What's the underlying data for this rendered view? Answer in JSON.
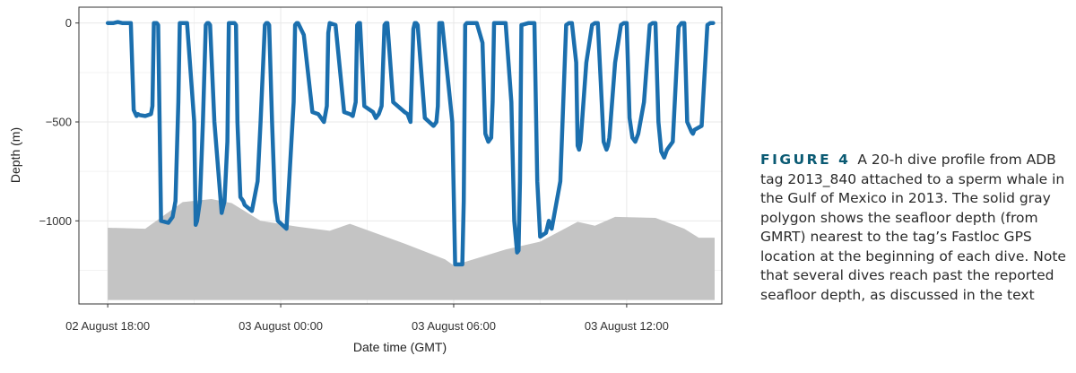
{
  "chart_data": {
    "type": "line",
    "xlabel": "Date time (GMT)",
    "ylabel": "Depth (m)",
    "x_start": "02 August 17:00",
    "x_ticks": [
      {
        "hours": 1,
        "label": "02 August 18:00"
      },
      {
        "hours": 7,
        "label": "03 August 00:00"
      },
      {
        "hours": 13,
        "label": "03 August 06:00"
      },
      {
        "hours": 19,
        "label": "03 August 12:00"
      }
    ],
    "y_ticks": [
      0,
      -500,
      -1000
    ],
    "xlim_hours": [
      0,
      22.3
    ],
    "ylim": [
      -1420,
      80
    ],
    "grid": true,
    "series": [
      {
        "color": "#1b6fae",
        "x_hours": [
          1.0,
          1.2,
          1.35,
          1.5,
          1.8,
          1.9,
          2.0,
          2.05,
          2.1,
          2.3,
          2.5,
          2.55,
          2.6,
          2.7,
          2.75,
          2.8,
          2.85,
          3.1,
          3.25,
          3.35,
          3.45,
          3.5,
          3.55,
          3.75,
          4.0,
          4.05,
          4.1,
          4.2,
          4.3,
          4.4,
          4.45,
          4.5,
          4.55,
          4.7,
          4.95,
          5.05,
          5.15,
          5.2,
          5.3,
          5.4,
          5.45,
          5.5,
          5.6,
          5.7,
          5.75,
          6.0,
          6.2,
          6.3,
          6.45,
          6.5,
          6.55,
          6.6,
          6.7,
          6.8,
          6.9,
          7.2,
          7.45,
          7.5,
          7.55,
          7.6,
          7.8,
          8.1,
          8.3,
          8.4,
          8.5,
          8.6,
          8.65,
          8.7,
          8.9,
          9.2,
          9.4,
          9.5,
          9.6,
          9.65,
          9.7,
          9.75,
          9.9,
          10.2,
          10.3,
          10.4,
          10.5,
          10.6,
          10.65,
          10.7,
          10.9,
          11.3,
          11.4,
          11.5,
          11.6,
          11.65,
          11.7,
          11.75,
          12.0,
          12.3,
          12.4,
          12.45,
          12.5,
          12.55,
          12.6,
          12.95,
          13.05,
          13.15,
          13.3,
          13.35,
          13.4,
          13.45,
          13.8,
          14.0,
          14.1,
          14.2,
          14.3,
          14.35,
          14.4,
          14.45,
          14.8,
          15.0,
          15.1,
          15.2,
          15.25,
          15.3,
          15.35,
          15.6,
          15.8,
          15.9,
          16.0,
          16.2,
          16.3,
          16.35,
          16.4,
          16.7,
          16.9,
          17.0,
          17.1,
          17.25,
          17.3,
          17.35,
          17.4,
          17.6,
          17.8,
          17.9,
          18.0,
          18.1,
          18.2,
          18.3,
          18.35,
          18.4,
          18.6,
          18.8,
          18.9,
          19.0,
          19.1,
          19.2,
          19.3,
          19.4,
          19.6,
          19.8,
          19.9,
          20.0,
          20.1,
          20.2,
          20.3,
          20.4,
          20.6,
          20.8,
          20.9,
          21.0,
          21.1,
          21.25,
          21.3,
          21.35,
          21.6,
          21.8,
          21.9,
          22.0,
          22.05
        ],
        "depth": [
          0,
          0,
          5,
          0,
          0,
          -440,
          -470,
          -460,
          -465,
          -470,
          -460,
          -420,
          0,
          0,
          -10,
          -500,
          -1000,
          -1010,
          -980,
          -900,
          -400,
          0,
          0,
          0,
          -500,
          -1020,
          -1000,
          -900,
          -500,
          -10,
          0,
          0,
          -10,
          -500,
          -960,
          -900,
          -600,
          0,
          0,
          0,
          -10,
          -500,
          -880,
          -900,
          -920,
          -950,
          -800,
          -500,
          -10,
          0,
          0,
          -10,
          -500,
          -900,
          -1000,
          -1040,
          -400,
          -10,
          0,
          0,
          -60,
          -450,
          -460,
          -480,
          -500,
          -420,
          -50,
          0,
          -10,
          -450,
          -460,
          -470,
          -400,
          -10,
          0,
          0,
          -420,
          -450,
          -480,
          -460,
          -420,
          -10,
          0,
          0,
          -400,
          -450,
          -460,
          -500,
          -30,
          0,
          0,
          -10,
          -480,
          -520,
          -500,
          -420,
          0,
          0,
          0,
          -500,
          -1220,
          -1220,
          -1220,
          -900,
          -10,
          0,
          0,
          -100,
          -560,
          -600,
          -580,
          -400,
          0,
          0,
          0,
          -400,
          -1000,
          -1160,
          -1150,
          -800,
          -10,
          0,
          0,
          -800,
          -1080,
          -1060,
          -1000,
          -1030,
          -1040,
          -800,
          -10,
          0,
          0,
          -200,
          -620,
          -640,
          -600,
          -200,
          -10,
          0,
          0,
          -300,
          -600,
          -640,
          -620,
          -580,
          -200,
          -10,
          0,
          0,
          -480,
          -580,
          -600,
          -560,
          -400,
          -10,
          0,
          0,
          -500,
          -650,
          -680,
          -640,
          -600,
          -20,
          0,
          0,
          -500,
          -550,
          -560,
          -540,
          -520,
          -10,
          0,
          0
        ]
      }
    ],
    "seafloor": {
      "color": "#c4c4c4",
      "x_hours": [
        1.0,
        2.3,
        3.6,
        4.6,
        5.3,
        6.3,
        7.6,
        8.7,
        9.4,
        11.3,
        12.7,
        13.0,
        14.8,
        16.0,
        17.3,
        17.9,
        18.6,
        20.0,
        21.0,
        21.5,
        22.05
      ],
      "depth": [
        -1035,
        -1040,
        -905,
        -890,
        -910,
        -1000,
        -1030,
        -1050,
        -1015,
        -1115,
        -1195,
        -1225,
        -1145,
        -1105,
        -1005,
        -1025,
        -980,
        -985,
        -1040,
        -1085,
        -1085
      ],
      "base_depth": -1400
    }
  },
  "caption": {
    "label": "FIGURE 4",
    "text": "A 20-h dive profile from ADB tag 2013_840 attached to a sperm whale in the Gulf of Mexico in 2013. The solid gray polygon shows the seafloor depth (from GMRT) nearest to the tag’s Fastloc GPS location at the beginning of each dive. Note that several dives reach past the reported seafloor depth, as discussed in the text"
  }
}
